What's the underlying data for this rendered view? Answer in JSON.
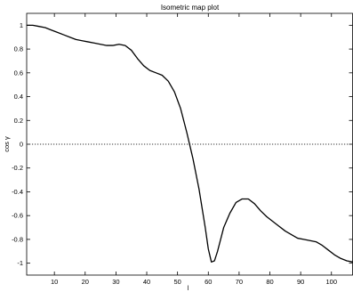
{
  "chart_data": {
    "type": "line",
    "title": "Isometric map plot",
    "xlabel": "l",
    "ylabel": "cos γ",
    "xlim": [
      1,
      107
    ],
    "ylim": [
      -1.1,
      1.1
    ],
    "xticks": [
      10,
      20,
      30,
      40,
      50,
      60,
      70,
      80,
      90,
      100
    ],
    "yticks": [
      -1,
      -0.8,
      -0.6,
      -0.4,
      -0.2,
      0,
      0.2,
      0.4,
      0.6,
      0.8,
      1
    ],
    "tick_labels_x": [
      "10",
      "20",
      "30",
      "40",
      "50",
      "60",
      "70",
      "80",
      "90",
      "100"
    ],
    "tick_labels_y": [
      "-1",
      "-0.8",
      "-0.6",
      "-0.4",
      "-0.2",
      "0",
      "0.2",
      "0.4",
      "0.6",
      "0.8",
      "1"
    ],
    "grid": false,
    "reference_line": {
      "y": 0,
      "style": "dotted"
    },
    "series": [
      {
        "style": "solid",
        "color": "#000000",
        "x": [
          1,
          3,
          5,
          7,
          9,
          11,
          13,
          15,
          17,
          19,
          21,
          23,
          25,
          27,
          29,
          31,
          33,
          35,
          37,
          39,
          41,
          43,
          45,
          47,
          49,
          51,
          53,
          55,
          57,
          59,
          60,
          61,
          62,
          63,
          64,
          65,
          67,
          69,
          71,
          73,
          75,
          77,
          79,
          81,
          83,
          85,
          87,
          89,
          91,
          93,
          95,
          97,
          99,
          101,
          103,
          105,
          107
        ],
        "y": [
          1.0,
          1.0,
          0.99,
          0.98,
          0.96,
          0.94,
          0.92,
          0.9,
          0.88,
          0.87,
          0.86,
          0.85,
          0.84,
          0.83,
          0.83,
          0.84,
          0.83,
          0.79,
          0.72,
          0.66,
          0.62,
          0.6,
          0.58,
          0.53,
          0.44,
          0.3,
          0.1,
          -0.12,
          -0.38,
          -0.7,
          -0.88,
          -0.99,
          -0.98,
          -0.9,
          -0.8,
          -0.7,
          -0.58,
          -0.49,
          -0.46,
          -0.46,
          -0.5,
          -0.56,
          -0.61,
          -0.65,
          -0.69,
          -0.73,
          -0.76,
          -0.79,
          -0.8,
          -0.81,
          -0.82,
          -0.85,
          -0.89,
          -0.93,
          -0.96,
          -0.98,
          -0.99
        ]
      }
    ]
  }
}
